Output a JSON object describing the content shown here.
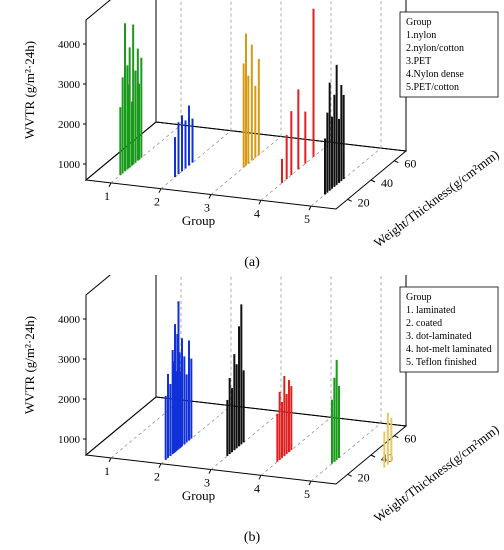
{
  "chart_data": [
    {
      "type": "bar3d",
      "panel_label": "(a)",
      "zlabel": "WVTR (g/m²·24h)",
      "xlabel": "Group",
      "ylabel": "Weight/Thickness(g/cm²mm)",
      "x_ticks": [
        "1",
        "2",
        "3",
        "4",
        "5"
      ],
      "y_ticks": [
        "20",
        "40",
        "60"
      ],
      "z_ticks": [
        "1000",
        "2000",
        "3000",
        "4000"
      ],
      "zlim": [
        600,
        4600
      ],
      "ylim": [
        10,
        70
      ],
      "legend": {
        "title": "Group",
        "entries": [
          "1.nylon",
          "2.nylon/cotton",
          "3.PET",
          "4.Nylon dense",
          "5.PET/cotton"
        ]
      },
      "series": [
        {
          "group": 1,
          "color": "#1a9a1a",
          "points": [
            {
              "y": 18,
              "z": 2300
            },
            {
              "y": 20,
              "z": 3000
            },
            {
              "y": 22,
              "z": 4300
            },
            {
              "y": 24,
              "z": 3200
            },
            {
              "y": 25,
              "z": 2700
            },
            {
              "y": 26,
              "z": 3600
            },
            {
              "y": 28,
              "z": 2200
            },
            {
              "y": 29,
              "z": 4100
            },
            {
              "y": 31,
              "z": 2900
            },
            {
              "y": 33,
              "z": 3400
            },
            {
              "y": 34,
              "z": 2500
            },
            {
              "y": 36,
              "z": 3100
            }
          ]
        },
        {
          "group": 2,
          "color": "#1030d8",
          "points": [
            {
              "y": 22,
              "z": 1600
            },
            {
              "y": 25,
              "z": 1900
            },
            {
              "y": 28,
              "z": 2000
            },
            {
              "y": 31,
              "z": 1800
            },
            {
              "y": 34,
              "z": 2100
            },
            {
              "y": 37,
              "z": 1700
            }
          ]
        },
        {
          "group": 3,
          "color": "#d89a10",
          "points": [
            {
              "y": 38,
              "z": 3200
            },
            {
              "y": 40,
              "z": 3900
            },
            {
              "y": 42,
              "z": 2800
            },
            {
              "y": 45,
              "z": 3500
            },
            {
              "y": 48,
              "z": 2400
            },
            {
              "y": 51,
              "z": 3000
            }
          ]
        },
        {
          "group": 4,
          "color": "#e02020",
          "points": [
            {
              "y": 28,
              "z": 1200
            },
            {
              "y": 32,
              "z": 1700
            },
            {
              "y": 36,
              "z": 2200
            },
            {
              "y": 42,
              "z": 2600
            },
            {
              "y": 48,
              "z": 1900
            },
            {
              "y": 55,
              "z": 4300
            }
          ]
        },
        {
          "group": 5,
          "color": "#111111",
          "points": [
            {
              "y": 22,
              "z": 2000
            },
            {
              "y": 24,
              "z": 2600
            },
            {
              "y": 26,
              "z": 3300
            },
            {
              "y": 28,
              "z": 2400
            },
            {
              "y": 30,
              "z": 2900
            },
            {
              "y": 32,
              "z": 3600
            },
            {
              "y": 34,
              "z": 2200
            },
            {
              "y": 36,
              "z": 3000
            },
            {
              "y": 38,
              "z": 2700
            }
          ]
        }
      ]
    },
    {
      "type": "bar3d",
      "panel_label": "(b)",
      "zlabel": "WVTR (g/m²·24h)",
      "xlabel": "Group",
      "ylabel": "Weight/Thickness(g/cm²mm)",
      "x_ticks": [
        "1",
        "2",
        "3",
        "4",
        "5"
      ],
      "y_ticks": [
        "20",
        "40",
        "60"
      ],
      "z_ticks": [
        "1000",
        "2000",
        "3000",
        "4000"
      ],
      "zlim": [
        600,
        4600
      ],
      "ylim": [
        10,
        70
      ],
      "legend": {
        "title": "Group",
        "entries": [
          "1. laminated",
          "2. coated",
          "3. dot-laminated",
          "4. hot-melt laminated",
          "5. Teflon finished"
        ]
      },
      "series": [
        {
          "group": 2,
          "color": "#1030d8",
          "points": [
            {
              "y": 14,
              "z": 2200
            },
            {
              "y": 16,
              "z": 2700
            },
            {
              "y": 18,
              "z": 2400
            },
            {
              "y": 20,
              "z": 3200
            },
            {
              "y": 21,
              "z": 2900
            },
            {
              "y": 22,
              "z": 3800
            },
            {
              "y": 23,
              "z": 2600
            },
            {
              "y": 24,
              "z": 3500
            },
            {
              "y": 25,
              "z": 4300
            },
            {
              "y": 26,
              "z": 3000
            },
            {
              "y": 27,
              "z": 2500
            },
            {
              "y": 28,
              "z": 3300
            },
            {
              "y": 30,
              "z": 2800
            },
            {
              "y": 32,
              "z": 2300
            },
            {
              "y": 34,
              "z": 3100
            },
            {
              "y": 36,
              "z": 2600
            }
          ]
        },
        {
          "group": 3,
          "color": "#111111",
          "points": [
            {
              "y": 24,
              "z": 2000
            },
            {
              "y": 26,
              "z": 2500
            },
            {
              "y": 28,
              "z": 2200
            },
            {
              "y": 30,
              "z": 3000
            },
            {
              "y": 32,
              "z": 2700
            },
            {
              "y": 34,
              "z": 3600
            },
            {
              "y": 36,
              "z": 4100
            },
            {
              "y": 38,
              "z": 2400
            }
          ]
        },
        {
          "group": 4,
          "color": "#e02020",
          "points": [
            {
              "y": 24,
              "z": 1800
            },
            {
              "y": 26,
              "z": 2300
            },
            {
              "y": 28,
              "z": 2000
            },
            {
              "y": 30,
              "z": 2600
            },
            {
              "y": 32,
              "z": 2100
            },
            {
              "y": 34,
              "z": 2400
            },
            {
              "y": 36,
              "z": 2200
            }
          ]
        },
        {
          "group": 5,
          "color": "#1a9a1a",
          "points": [
            {
              "y": 28,
              "z": 2200
            },
            {
              "y": 30,
              "z": 2700
            },
            {
              "y": 32,
              "z": 3100
            },
            {
              "y": 34,
              "z": 2400
            }
          ]
        },
        {
          "group": 6,
          "color": "#e8c860",
          "points": [
            {
              "y": 30,
              "z": 1500
            },
            {
              "y": 33,
              "z": 1900
            },
            {
              "y": 36,
              "z": 1700
            }
          ]
        }
      ]
    }
  ]
}
